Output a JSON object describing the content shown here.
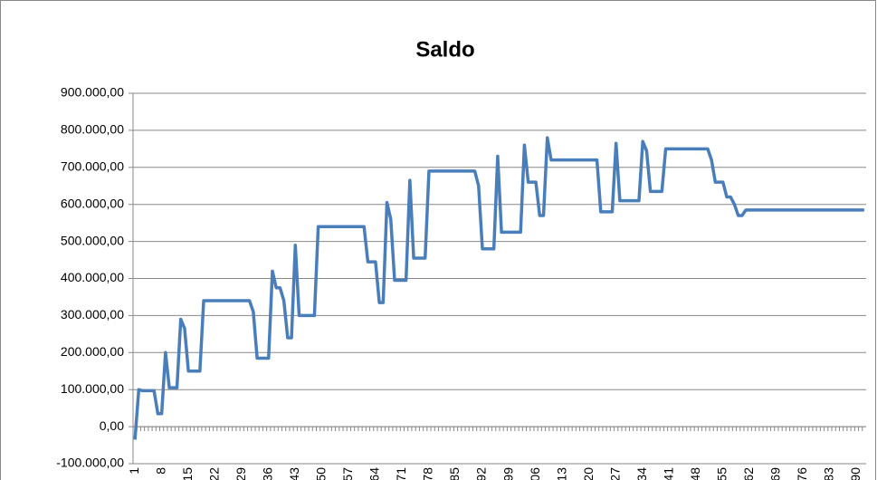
{
  "chart_data": {
    "type": "line",
    "title": "Saldo",
    "color": "#4a7ebb",
    "grid": true,
    "categories": [
      1,
      null,
      null,
      null,
      null,
      null,
      null,
      8,
      null,
      null,
      null,
      null,
      null,
      null,
      15,
      null,
      null,
      null,
      null,
      null,
      null,
      22,
      null,
      null,
      null,
      null,
      null,
      null,
      29,
      null,
      null,
      null,
      null,
      null,
      null,
      36,
      null,
      null,
      null,
      null,
      null,
      null,
      43,
      null,
      null,
      null,
      null,
      null,
      null,
      50,
      null,
      null,
      null,
      null,
      null,
      null,
      57,
      null,
      null,
      null,
      null,
      null,
      null,
      64,
      null,
      null,
      null,
      null,
      null,
      null,
      71,
      null,
      null,
      null,
      null,
      null,
      null,
      78,
      null,
      null,
      null,
      null,
      null,
      null,
      85,
      null,
      null,
      null,
      null,
      null,
      null,
      92,
      null,
      null,
      null,
      null,
      null,
      null,
      99,
      null,
      null,
      null,
      null,
      null,
      null,
      106,
      null,
      null,
      null,
      null,
      null,
      null,
      113,
      null,
      null,
      null,
      null,
      null,
      null,
      120,
      null,
      null,
      null,
      null,
      null,
      null,
      127,
      null,
      null,
      null,
      null,
      null,
      null,
      134,
      null,
      null,
      null,
      null,
      null,
      null,
      141,
      null,
      null,
      null,
      null,
      null,
      null,
      148,
      null,
      null,
      null,
      null,
      null,
      null,
      155,
      null,
      null,
      null,
      null,
      null,
      null,
      162,
      null,
      null,
      null,
      null,
      null,
      null,
      169,
      null,
      null,
      null,
      null,
      null,
      null,
      176,
      null,
      null,
      null,
      null,
      null,
      null,
      183,
      null,
      null,
      null,
      null,
      null,
      null,
      190,
      null,
      null
    ],
    "values": [
      -35000,
      100000,
      97000,
      97000,
      97000,
      97000,
      35000,
      35000,
      200000,
      105000,
      105000,
      105000,
      290000,
      265000,
      150000,
      150000,
      150000,
      150000,
      340000,
      340000,
      340000,
      340000,
      340000,
      340000,
      340000,
      340000,
      340000,
      340000,
      340000,
      340000,
      340000,
      310000,
      185000,
      185000,
      185000,
      185000,
      420000,
      375000,
      375000,
      340000,
      240000,
      240000,
      490000,
      300000,
      300000,
      300000,
      300000,
      300000,
      540000,
      540000,
      540000,
      540000,
      540000,
      540000,
      540000,
      540000,
      540000,
      540000,
      540000,
      540000,
      540000,
      445000,
      445000,
      445000,
      335000,
      335000,
      605000,
      560000,
      395000,
      395000,
      395000,
      395000,
      665000,
      455000,
      455000,
      455000,
      455000,
      690000,
      690000,
      690000,
      690000,
      690000,
      690000,
      690000,
      690000,
      690000,
      690000,
      690000,
      690000,
      690000,
      650000,
      480000,
      480000,
      480000,
      480000,
      730000,
      525000,
      525000,
      525000,
      525000,
      525000,
      525000,
      760000,
      660000,
      660000,
      660000,
      570000,
      570000,
      780000,
      720000,
      720000,
      720000,
      720000,
      720000,
      720000,
      720000,
      720000,
      720000,
      720000,
      720000,
      720000,
      720000,
      580000,
      580000,
      580000,
      580000,
      765000,
      610000,
      610000,
      610000,
      610000,
      610000,
      610000,
      770000,
      745000,
      635000,
      635000,
      635000,
      635000,
      750000,
      750000,
      750000,
      750000,
      750000,
      750000,
      750000,
      750000,
      750000,
      750000,
      750000,
      750000,
      720000,
      660000,
      660000,
      660000,
      620000,
      620000,
      600000,
      570000,
      570000,
      585000,
      585000,
      585000,
      585000,
      585000,
      585000,
      585000,
      585000,
      585000,
      585000,
      585000,
      585000,
      585000,
      585000,
      585000,
      585000,
      585000,
      585000,
      585000,
      585000,
      585000,
      585000,
      585000,
      585000,
      585000,
      585000,
      585000,
      585000,
      585000,
      585000,
      585000,
      585000
    ],
    "ylim": [
      -100000,
      900000
    ],
    "yticks": [
      {
        "value": -100000,
        "label": "-100.000,00"
      },
      {
        "value": 0,
        "label": "0,00"
      },
      {
        "value": 100000,
        "label": "100.000,00"
      },
      {
        "value": 200000,
        "label": "200.000,00"
      },
      {
        "value": 300000,
        "label": "300.000,00"
      },
      {
        "value": 400000,
        "label": "400.000,00"
      },
      {
        "value": 500000,
        "label": "500.000,00"
      },
      {
        "value": 600000,
        "label": "600.000,00"
      },
      {
        "value": 700000,
        "label": "700.000,00"
      },
      {
        "value": 800000,
        "label": "800.000,00"
      },
      {
        "value": 900000,
        "label": "900.000,00"
      }
    ]
  }
}
